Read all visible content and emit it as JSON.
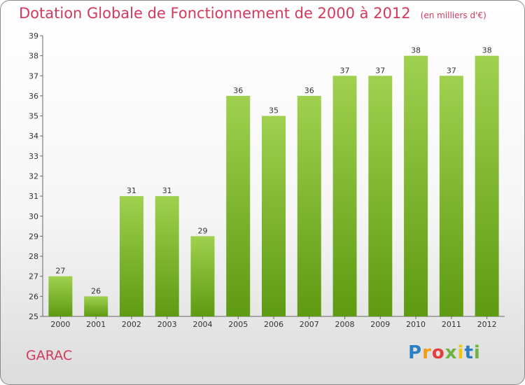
{
  "title": "Dotation Globale de Fonctionnement de 2000 à 2012",
  "subtitle": "(en milliers d'€)",
  "commune": "GARAC",
  "logo": [
    "P",
    "r",
    "o",
    "x",
    "i",
    "t",
    "i"
  ],
  "colors": {
    "title": "#d2395c",
    "bar_top": "#9fd14f",
    "bar_bottom": "#5e9a12"
  },
  "chart_data": {
    "type": "bar",
    "categories": [
      "2000",
      "2001",
      "2002",
      "2003",
      "2004",
      "2005",
      "2006",
      "2007",
      "2008",
      "2009",
      "2010",
      "2011",
      "2012"
    ],
    "values": [
      27,
      26,
      31,
      31,
      29,
      36,
      35,
      36,
      37,
      37,
      38,
      37,
      38
    ],
    "ylim": [
      25,
      39
    ],
    "yticks": [
      25,
      26,
      27,
      28,
      29,
      30,
      31,
      32,
      33,
      34,
      35,
      36,
      37,
      38,
      39
    ],
    "grid": false,
    "xlabel": "",
    "ylabel": ""
  }
}
